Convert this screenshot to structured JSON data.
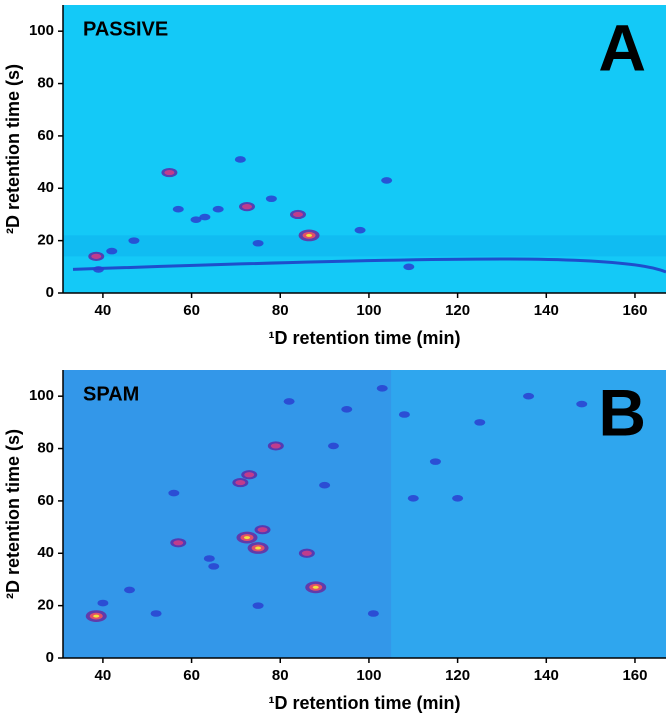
{
  "chart_data": [
    {
      "type": "scatter",
      "label": "PASSIVE",
      "panel": "A",
      "xlabel": "¹D retention time (min)",
      "ylabel": "²D retention time (s)",
      "xlim": [
        31,
        167
      ],
      "ylim": [
        0,
        110
      ],
      "xticks": [
        40,
        60,
        80,
        100,
        120,
        140,
        160
      ],
      "yticks": [
        0,
        20,
        40,
        60,
        80,
        100
      ],
      "background": "#14c9f7",
      "x": [
        38.5,
        39,
        55,
        71,
        72.5,
        84,
        86.5,
        75,
        66,
        57,
        63,
        47,
        42,
        104,
        109,
        98,
        78,
        61
      ],
      "values": [
        14,
        9,
        46,
        51,
        33,
        30,
        22,
        19,
        32,
        32,
        29,
        20,
        16,
        43,
        10,
        24,
        36,
        28
      ],
      "intensity": [
        2,
        1,
        2,
        1,
        2,
        2,
        3,
        1,
        1,
        1,
        1,
        1,
        1,
        1,
        1,
        1,
        1,
        1
      ]
    },
    {
      "type": "scatter",
      "label": "SPAM",
      "panel": "B",
      "xlabel": "¹D retention time (min)",
      "ylabel": "²D retention time (s)",
      "xlim": [
        31,
        167
      ],
      "ylim": [
        0,
        110
      ],
      "xticks": [
        40,
        60,
        80,
        100,
        120,
        140,
        160
      ],
      "yticks": [
        0,
        20,
        40,
        60,
        80,
        100
      ],
      "background": "#2fa6ee",
      "x": [
        38.5,
        40,
        46,
        52,
        56,
        57,
        64,
        71,
        73,
        72.5,
        75,
        76,
        79,
        86,
        88,
        101,
        110,
        103,
        108,
        82,
        92,
        120,
        136,
        148,
        65,
        75,
        90,
        95,
        115,
        125
      ],
      "values": [
        16,
        21,
        26,
        17,
        63,
        44,
        38,
        67,
        70,
        46,
        42,
        49,
        81,
        40,
        27,
        17,
        61,
        103,
        93,
        98,
        81,
        61,
        100,
        97,
        35,
        20,
        66,
        95,
        75,
        90
      ],
      "intensity": [
        3,
        1,
        1,
        1,
        1,
        2,
        1,
        2,
        2,
        3,
        3,
        2,
        2,
        2,
        3,
        1,
        1,
        1,
        1,
        1,
        1,
        1,
        1,
        1,
        1,
        1,
        1,
        1,
        1,
        1
      ]
    }
  ]
}
